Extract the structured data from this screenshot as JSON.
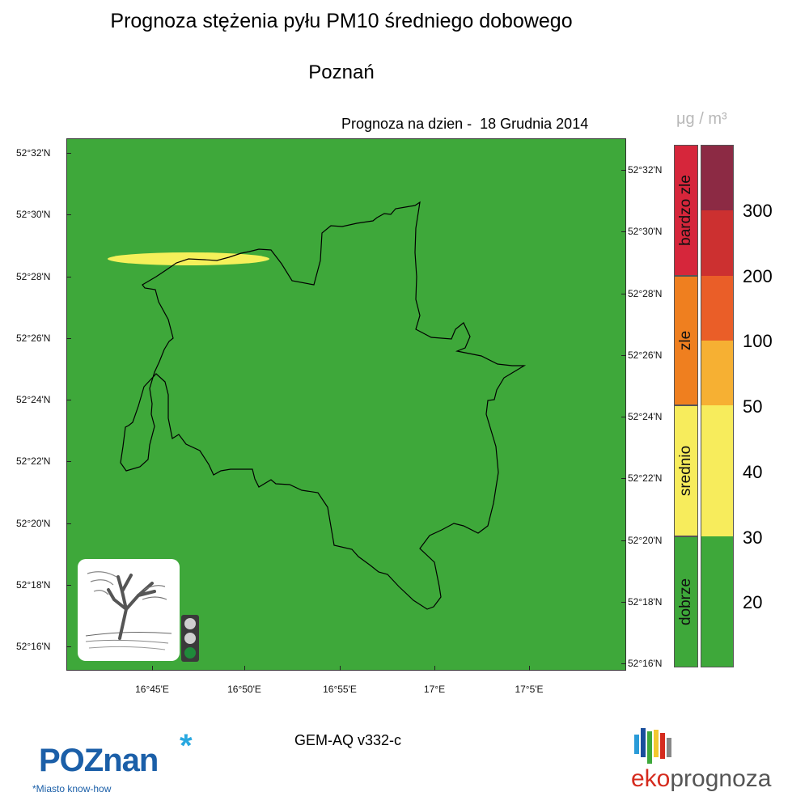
{
  "title": "Prognoza stężenia pyłu PM10 średniego dobowego",
  "subtitle": "Poznań",
  "date_label": "Prognoza na dzien -  18 Grudnia 2014",
  "map": {
    "background_color": "#3ea83a",
    "plume_color": "#f5f05a",
    "boundary_color": "#000000",
    "lat_labels": [
      "52°32'N",
      "52°30'N",
      "52°28'N",
      "52°26'N",
      "52°24'N",
      "52°22'N",
      "52°20'N",
      "52°18'N",
      "52°16'N"
    ],
    "lon_labels": [
      "16°45'E",
      "16°50'E",
      "16°55'E",
      "17°E",
      "17°5'E"
    ]
  },
  "legend": {
    "unit": "μg / m³",
    "categories": [
      {
        "label": "bardzo zle",
        "color": "#d6263b"
      },
      {
        "label": "zle",
        "color": "#ef7f1f"
      },
      {
        "label": "srednio",
        "color": "#f7ec5c"
      },
      {
        "label": "dobrze",
        "color": "#3ea83a"
      }
    ],
    "level_colors": [
      "#8c2a44",
      "#cc3030",
      "#ea5e28",
      "#f6b033",
      "#f7ec5c",
      "#f7ec5c",
      "#3ea83a",
      "#3ea83a"
    ],
    "level_labels": [
      "300",
      "200",
      "100",
      "50",
      "40",
      "30",
      "20"
    ]
  },
  "traffic_light": {
    "off_color": "#cfcfcf",
    "on_color": "#1f8a3a"
  },
  "model_label": "GEM-AQ v332-c",
  "logos": {
    "poznan_text": "POZnan",
    "poznan_star": "*",
    "poznan_tagline": "*Miasto know-how",
    "eko_prefix": "eko",
    "eko_suffix": "prognoza"
  }
}
